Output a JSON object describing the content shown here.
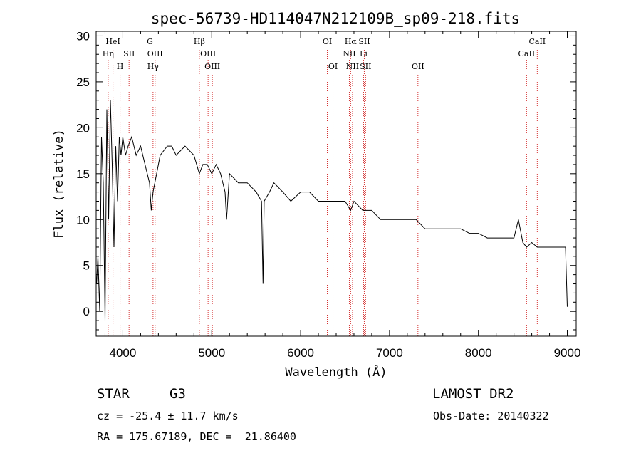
{
  "chart_data": {
    "type": "line",
    "title": "spec-56739-HD114047N212109B_sp09-218.fits",
    "xlabel": "Wavelength (Å)",
    "ylabel": "Flux (relative)",
    "xlim": [
      3700,
      9100
    ],
    "ylim": [
      -2.7,
      30.5
    ],
    "xticks": [
      4000,
      5000,
      6000,
      7000,
      8000,
      9000
    ],
    "yticks": [
      0,
      5,
      10,
      15,
      20,
      25,
      30
    ],
    "grid": false,
    "line_color": "#000000",
    "marker_color": "#d43030",
    "series": [
      {
        "x": [
          3705,
          3720,
          3740,
          3760,
          3780,
          3800,
          3820,
          3840,
          3860,
          3880,
          3900,
          3920,
          3940,
          3960,
          3980,
          4000,
          4030,
          4060,
          4100,
          4150,
          4200,
          4250,
          4300,
          4320,
          4340,
          4380,
          4420,
          4500,
          4550,
          4600,
          4700,
          4800,
          4861,
          4900,
          4950,
          5000,
          5050,
          5100,
          5150,
          5167,
          5200,
          5300,
          5400,
          5500,
          5560,
          5577,
          5590,
          5650,
          5700,
          5800,
          5890,
          6000,
          6100,
          6200,
          6300,
          6400,
          6500,
          6563,
          6600,
          6700,
          6800,
          6900,
          7000,
          7100,
          7200,
          7300,
          7400,
          7500,
          7600,
          7700,
          7800,
          7900,
          8000,
          8100,
          8200,
          8300,
          8400,
          8450,
          8500,
          8542,
          8600,
          8662,
          8700,
          8800,
          8900,
          8980,
          9000
        ],
        "y": [
          3,
          6,
          0,
          19,
          14,
          -1,
          22,
          10,
          23,
          16,
          7,
          18,
          12,
          19,
          17,
          19,
          17,
          18,
          19,
          17,
          18,
          16,
          14,
          11,
          13,
          15,
          17,
          18,
          18,
          17,
          18,
          17,
          15,
          16,
          16,
          15,
          16,
          15,
          13,
          10,
          15,
          14,
          14,
          13,
          12,
          3,
          12,
          13,
          14,
          13,
          12,
          13,
          13,
          12,
          12,
          12,
          12,
          11,
          12,
          11,
          11,
          10,
          10,
          10,
          10,
          10,
          9,
          9,
          9,
          9,
          9,
          8.5,
          8.5,
          8,
          8,
          8,
          8,
          10,
          7.5,
          7,
          7.5,
          7,
          7,
          7,
          7,
          7,
          0.5
        ]
      }
    ],
    "markers": [
      {
        "label": "HeI",
        "x": 3889,
        "row": 1
      },
      {
        "label": "Hη",
        "x": 3835,
        "row": 2
      },
      {
        "label": "SII",
        "x": 4070,
        "row": 2
      },
      {
        "label": "H",
        "x": 3969,
        "row": 3
      },
      {
        "label": "G",
        "x": 4305,
        "row": 1
      },
      {
        "label": "OIII",
        "x": 4363,
        "row": 2
      },
      {
        "label": "Hγ",
        "x": 4340,
        "row": 3
      },
      {
        "label": "Hβ",
        "x": 4861,
        "row": 1
      },
      {
        "label": "OIII",
        "x": 4959,
        "row": 2
      },
      {
        "label": "OIII",
        "x": 5007,
        "row": 3
      },
      {
        "label": "OI",
        "x": 6300,
        "row": 1
      },
      {
        "label": "OI",
        "x": 6364,
        "row": 3
      },
      {
        "label": "Hα",
        "x": 6563,
        "row": 1
      },
      {
        "label": "SII",
        "x": 6716,
        "row": 1
      },
      {
        "label": "NII",
        "x": 6548,
        "row": 2
      },
      {
        "label": "Li",
        "x": 6708,
        "row": 2
      },
      {
        "label": "NII",
        "x": 6584,
        "row": 3
      },
      {
        "label": "SII",
        "x": 6731,
        "row": 3
      },
      {
        "label": "OII",
        "x": 7320,
        "row": 3
      },
      {
        "label": "CaII",
        "x": 8662,
        "row": 1
      },
      {
        "label": "CaII",
        "x": 8542,
        "row": 2
      }
    ]
  },
  "info": {
    "object_type": "STAR",
    "subclass": "G3",
    "survey": "LAMOST DR2",
    "redshift": "cz = -25.4 ± 11.7 km/s",
    "obs_date": "Obs-Date: 20140322",
    "coords": "RA = 175.67189, DEC =  21.86400"
  }
}
